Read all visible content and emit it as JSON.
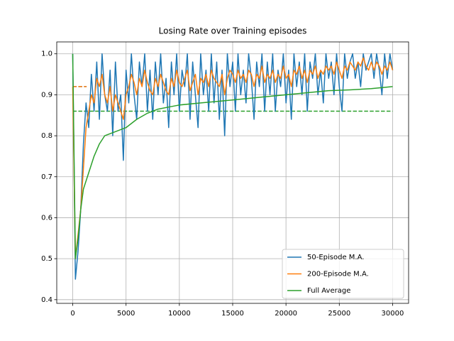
{
  "chart_data": {
    "type": "line",
    "title": "Losing Rate over Training episodes",
    "x": [
      0,
      250,
      500,
      750,
      1000,
      1250,
      1500,
      1750,
      2000,
      2250,
      2500,
      2750,
      3000,
      3250,
      3500,
      3750,
      4000,
      4250,
      4500,
      4750,
      5000,
      5250,
      5500,
      5750,
      6000,
      6250,
      6500,
      6750,
      7000,
      7250,
      7500,
      7750,
      8000,
      8250,
      8500,
      8750,
      9000,
      9250,
      9500,
      9750,
      10000,
      10250,
      10500,
      10750,
      11000,
      11250,
      11500,
      11750,
      12000,
      12250,
      12500,
      12750,
      13000,
      13250,
      13500,
      13750,
      14000,
      14250,
      14500,
      14750,
      15000,
      15250,
      15500,
      15750,
      16000,
      16250,
      16500,
      16750,
      17000,
      17250,
      17500,
      17750,
      18000,
      18250,
      18500,
      18750,
      19000,
      19250,
      19500,
      19750,
      20000,
      20250,
      20500,
      20750,
      21000,
      21250,
      21500,
      21750,
      22000,
      22250,
      22500,
      22750,
      23000,
      23250,
      23500,
      23750,
      24000,
      24250,
      24500,
      24750,
      25000,
      25250,
      25500,
      25750,
      26000,
      26250,
      26500,
      26750,
      27000,
      27250,
      27500,
      27750,
      28000,
      28250,
      28500,
      28750,
      29000,
      29250,
      29500,
      29750,
      30000
    ],
    "series": [
      {
        "name": "50-Episode M.A.",
        "color": "#1f77b4",
        "values": [
          1.0,
          0.45,
          0.52,
          0.62,
          0.78,
          0.88,
          0.82,
          0.95,
          0.86,
          0.98,
          0.84,
          1.0,
          0.9,
          0.86,
          0.96,
          0.8,
          0.98,
          0.86,
          0.9,
          0.74,
          0.96,
          0.88,
          1.0,
          0.9,
          0.84,
          0.98,
          0.92,
          1.0,
          0.86,
          0.96,
          0.84,
          0.98,
          0.9,
          1.0,
          0.88,
          0.94,
          0.82,
          0.98,
          0.9,
          1.0,
          0.86,
          0.96,
          0.92,
          1.0,
          0.84,
          0.98,
          0.9,
          0.82,
          1.0,
          0.9,
          0.96,
          0.86,
          1.0,
          0.88,
          0.98,
          0.84,
          0.96,
          0.8,
          1.0,
          0.92,
          0.98,
          0.86,
          1.0,
          0.9,
          0.96,
          0.88,
          1.0,
          0.94,
          0.84,
          0.98,
          0.92,
          1.0,
          0.86,
          0.98,
          0.9,
          1.0,
          0.86,
          0.96,
          0.92,
          1.0,
          0.88,
          0.96,
          0.84,
          1.0,
          0.92,
          0.98,
          0.9,
          1.0,
          0.86,
          0.98,
          0.94,
          1.0,
          0.9,
          0.96,
          0.88,
          1.0,
          0.94,
          0.98,
          0.9,
          1.0,
          0.92,
          0.86,
          1.0,
          0.94,
          0.98,
          1.0,
          0.94,
          0.98,
          0.92,
          1.0,
          0.96,
          0.98,
          1.0,
          0.94,
          1.0,
          0.96,
          0.9,
          1.0,
          0.94,
          1.0,
          0.96
        ]
      },
      {
        "name": "200-Episode M.A.",
        "color": "#ff7f0e",
        "values": [
          0.92,
          0.5,
          0.56,
          0.62,
          0.72,
          0.82,
          0.86,
          0.9,
          0.88,
          0.94,
          0.92,
          0.95,
          0.9,
          0.88,
          0.92,
          0.86,
          0.9,
          0.88,
          0.86,
          0.84,
          0.9,
          0.92,
          0.95,
          0.93,
          0.9,
          0.94,
          0.92,
          0.96,
          0.93,
          0.91,
          0.9,
          0.94,
          0.92,
          0.95,
          0.93,
          0.91,
          0.9,
          0.94,
          0.92,
          0.96,
          0.93,
          0.92,
          0.94,
          0.96,
          0.91,
          0.93,
          0.95,
          0.9,
          0.94,
          0.93,
          0.95,
          0.92,
          0.96,
          0.94,
          0.93,
          0.92,
          0.95,
          0.9,
          0.94,
          0.96,
          0.95,
          0.93,
          0.96,
          0.94,
          0.95,
          0.93,
          0.96,
          0.95,
          0.92,
          0.95,
          0.94,
          0.97,
          0.93,
          0.95,
          0.94,
          0.96,
          0.93,
          0.95,
          0.94,
          0.97,
          0.94,
          0.95,
          0.92,
          0.96,
          0.95,
          0.97,
          0.94,
          0.96,
          0.93,
          0.96,
          0.95,
          0.97,
          0.94,
          0.96,
          0.95,
          0.97,
          0.96,
          0.97,
          0.95,
          0.98,
          0.96,
          0.94,
          0.97,
          0.96,
          0.98,
          0.97,
          0.96,
          0.98,
          0.97,
          0.99,
          0.97,
          0.96,
          0.98,
          0.96,
          0.98,
          0.97,
          0.95,
          0.97,
          0.96,
          0.98,
          0.96
        ]
      },
      {
        "name": "Full Average",
        "color": "#2ca02c",
        "x": [
          0,
          250,
          500,
          750,
          1000,
          1500,
          2000,
          2500,
          3000,
          4000,
          5000,
          6000,
          7000,
          8000,
          9000,
          10000,
          12000,
          14000,
          16000,
          18000,
          20000,
          22000,
          24000,
          26000,
          28000,
          30000
        ],
        "values": [
          1.0,
          0.5,
          0.55,
          0.62,
          0.67,
          0.71,
          0.75,
          0.78,
          0.8,
          0.81,
          0.82,
          0.84,
          0.855,
          0.865,
          0.87,
          0.875,
          0.88,
          0.885,
          0.89,
          0.895,
          0.9,
          0.905,
          0.91,
          0.912,
          0.915,
          0.92
        ]
      }
    ],
    "reference_lines": [
      {
        "y": 0.92,
        "x": [
          0,
          1300
        ],
        "color": "#1f77b4"
      },
      {
        "y": 0.92,
        "x": [
          0,
          1300
        ],
        "color": "#ff7f0e"
      },
      {
        "y": 0.86,
        "x": [
          0,
          30000
        ],
        "color": "#2ca02c"
      }
    ],
    "xlim": [
      -1500,
      31500
    ],
    "ylim": [
      0.391,
      1.029
    ],
    "xticks": [
      0,
      5000,
      10000,
      15000,
      20000,
      25000,
      30000
    ],
    "yticks": [
      {
        "value": 0.4,
        "label": "0.4"
      },
      {
        "value": 0.5,
        "label": "0.5"
      },
      {
        "value": 0.6,
        "label": "0.6"
      },
      {
        "value": 0.7,
        "label": "0.7"
      },
      {
        "value": 0.8,
        "label": "0.8"
      },
      {
        "value": 0.9,
        "label": "0.9"
      },
      {
        "value": 1.0,
        "label": "1.0"
      }
    ],
    "grid": true,
    "legend": "lower right"
  }
}
